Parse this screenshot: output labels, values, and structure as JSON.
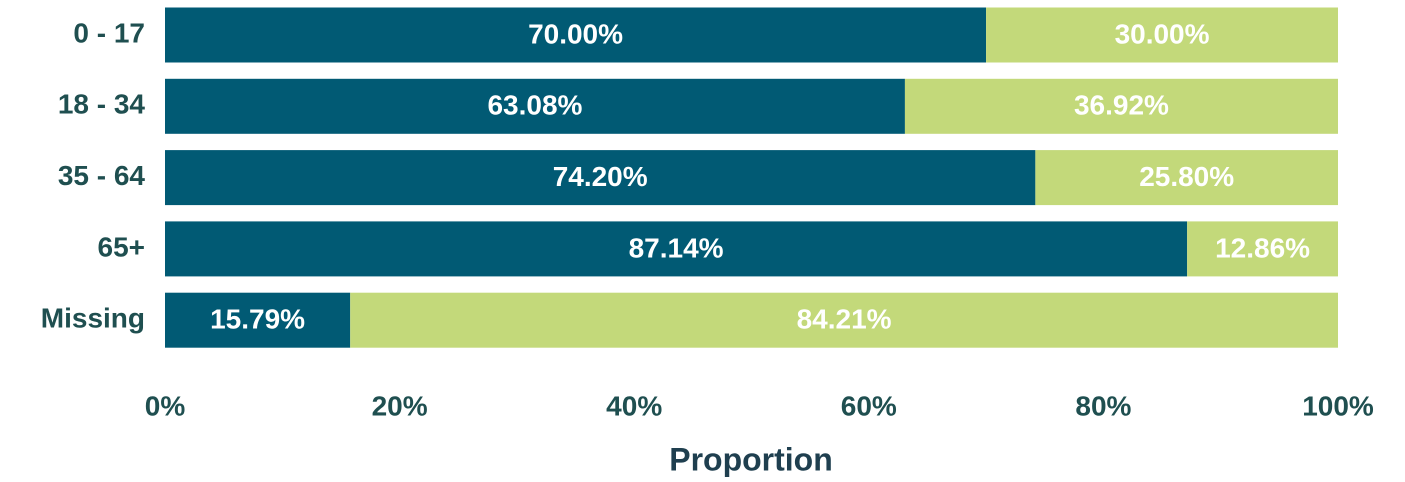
{
  "chart_data": {
    "type": "stacked_barh",
    "categories": [
      "0 - 17",
      "18 - 34",
      "35 - 64",
      "65+",
      "Missing"
    ],
    "series": [
      {
        "color": "#015a74",
        "values": [
          70.0,
          63.08,
          74.2,
          87.14,
          15.79
        ],
        "value_labels": [
          "70.00%",
          "63.08%",
          "74.20%",
          "87.14%",
          "15.79%"
        ]
      },
      {
        "color": "#c3d97a",
        "values": [
          30.0,
          36.92,
          25.8,
          12.86,
          84.21
        ],
        "value_labels": [
          "30.00%",
          "36.92%",
          "25.80%",
          "12.86%",
          "84.21%"
        ]
      }
    ],
    "xlabel": "Proportion",
    "xlim": [
      0,
      100
    ],
    "xticks": [
      {
        "value": 0,
        "label": "0%"
      },
      {
        "value": 20,
        "label": "20%"
      },
      {
        "value": 40,
        "label": "40%"
      },
      {
        "value": 60,
        "label": "60%"
      },
      {
        "value": 80,
        "label": "80%"
      },
      {
        "value": 100,
        "label": "100%"
      }
    ]
  }
}
